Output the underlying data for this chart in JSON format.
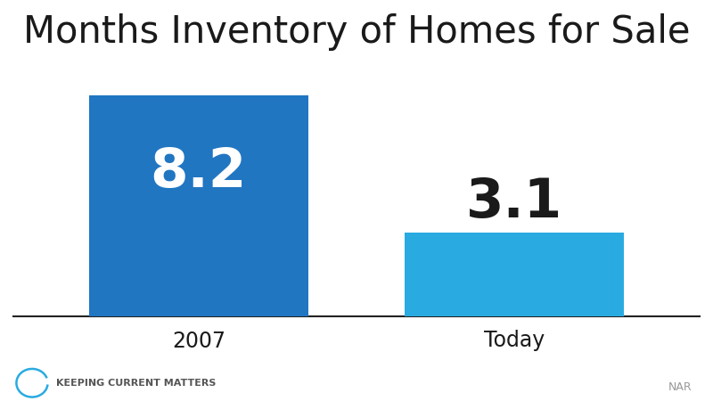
{
  "title": "Months Inventory of Homes for Sale",
  "categories": [
    "2007",
    "Today"
  ],
  "values": [
    8.2,
    3.1
  ],
  "bar_colors": [
    "#2176C2",
    "#29ABE2"
  ],
  "label_colors": [
    "#ffffff",
    "#1a1a1a"
  ],
  "label_fontsize": 44,
  "title_fontsize": 30,
  "tick_fontsize": 17,
  "background_color": "#ffffff",
  "ylim": [
    0,
    9.5
  ],
  "bar_width": 0.32,
  "x_positions": [
    0.27,
    0.73
  ],
  "nar_text": "NAR",
  "nar_fontsize": 9,
  "kcm_text": "Keeping Current Matters",
  "kcm_fontsize": 8,
  "kcm_color": "#29ABE2",
  "axis_line_color": "#222222"
}
